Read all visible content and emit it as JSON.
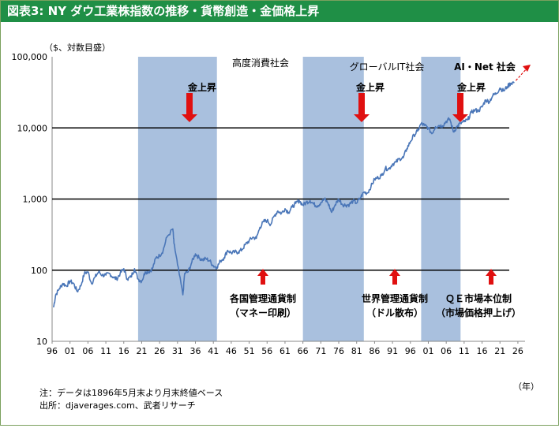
{
  "figure": {
    "title": "図表3: NY ダウ工業株指数の推移・貨幣創造・金価格上昇",
    "y_unit_note": "（$、対数目盛）",
    "x_unit": "（年）",
    "notes": [
      "注：データは1896年5月末より月末終値ベース",
      "出所：djaverages.com、武者リサーチ"
    ],
    "colors": {
      "header_bg": "#1f8f46",
      "band": "#a9c0de",
      "line": "#4a76b8",
      "arrow": "#e01010"
    }
  },
  "chart_data": {
    "type": "line",
    "title": "図表3: NY ダウ工業株指数の推移・貨幣創造・金価格上昇",
    "ylabel": "（$、対数目盛）",
    "xlabel": "（年）",
    "y_scale": "log",
    "ylim": [
      10,
      100000
    ],
    "xlim": [
      1896,
      2028
    ],
    "y_ticks": [
      "100,000",
      "10,000",
      "1,000",
      "100",
      "10"
    ],
    "x_ticks": [
      "96",
      "01",
      "06",
      "11",
      "16",
      "21",
      "26",
      "31",
      "36",
      "41",
      "46",
      "51",
      "56",
      "61",
      "66",
      "71",
      "76",
      "81",
      "86",
      "91",
      "96",
      "01",
      "06",
      "11",
      "16",
      "21",
      "26"
    ],
    "series": [
      {
        "x": [
          1896.4,
          1897,
          1898,
          1899,
          1900,
          1901,
          1902,
          1903,
          1904,
          1905,
          1906,
          1907,
          1908,
          1909,
          1910,
          1911,
          1912,
          1913,
          1914,
          1915,
          1916,
          1917,
          1918,
          1919,
          1920,
          1921,
          1922,
          1923,
          1924,
          1925,
          1926,
          1927,
          1928,
          1929.7,
          1930,
          1931,
          1932.5,
          1933,
          1934,
          1935,
          1936,
          1937,
          1938,
          1939,
          1940,
          1941,
          1942,
          1943,
          1944,
          1945,
          1946,
          1947,
          1948,
          1949,
          1950,
          1951,
          1952,
          1953,
          1954,
          1955,
          1956,
          1957,
          1958,
          1959,
          1960,
          1961,
          1962,
          1963,
          1964,
          1965,
          1966,
          1967,
          1968,
          1969,
          1970,
          1971,
          1972,
          1973,
          1974,
          1975,
          1976,
          1977,
          1978,
          1979,
          1980,
          1981,
          1982,
          1983,
          1984,
          1985,
          1986,
          1987,
          1988,
          1989,
          1990,
          1991,
          1992,
          1993,
          1994,
          1995,
          1996,
          1997,
          1998,
          1999,
          2000,
          2001,
          2002,
          2003,
          2004,
          2005,
          2006,
          2007,
          2008,
          2009,
          2010,
          2011,
          2012,
          2013,
          2014,
          2015,
          2016,
          2017,
          2018,
          2019,
          2020,
          2021,
          2022,
          2023,
          2024,
          2025
        ],
        "y": [
          30,
          45,
          55,
          65,
          60,
          70,
          65,
          50,
          60,
          90,
          95,
          65,
          80,
          95,
          85,
          85,
          90,
          80,
          75,
          90,
          105,
          75,
          80,
          105,
          75,
          70,
          95,
          95,
          105,
          150,
          160,
          190,
          290,
          380,
          240,
          120,
          45,
          90,
          95,
          130,
          170,
          150,
          140,
          145,
          135,
          115,
          110,
          135,
          150,
          190,
          175,
          180,
          180,
          195,
          230,
          260,
          290,
          280,
          400,
          480,
          500,
          440,
          580,
          680,
          630,
          730,
          650,
          770,
          870,
          950,
          820,
          900,
          950,
          850,
          800,
          890,
          1000,
          880,
          650,
          830,
          1000,
          840,
          820,
          840,
          940,
          880,
          1030,
          1250,
          1210,
          1500,
          1900,
          2000,
          2150,
          2700,
          2650,
          3100,
          3300,
          3700,
          3800,
          5100,
          6400,
          7900,
          9000,
          11500,
          10800,
          10000,
          8300,
          10400,
          10800,
          10700,
          12400,
          13300,
          8800,
          10400,
          11600,
          12200,
          13000,
          16500,
          17800,
          17400,
          19700,
          24700,
          23300,
          28500,
          30600,
          36300,
          33100,
          37700,
          42500,
          44000
        ],
        "name": ""
      }
    ],
    "bands": [
      {
        "from": 1920,
        "to": 1942
      },
      {
        "from": 1966,
        "to": 1983
      },
      {
        "from": 1999,
        "to": 2010
      }
    ],
    "hlines": [
      10000,
      1000,
      100
    ],
    "annotations": {
      "band_labels": [
        "高度消費社会",
        "グローバルIT社会",
        "AI・Net 社会"
      ],
      "gold_labels": [
        "金上昇",
        "金上昇",
        "金上昇"
      ],
      "regime_labels": [
        [
          "各国管理通貨制",
          "（マネー印刷）"
        ],
        [
          "世界管理通貨制",
          "（ドル散布）"
        ],
        [
          "ＱＥ市場本位制",
          "（市場価格押上げ）"
        ]
      ]
    }
  }
}
